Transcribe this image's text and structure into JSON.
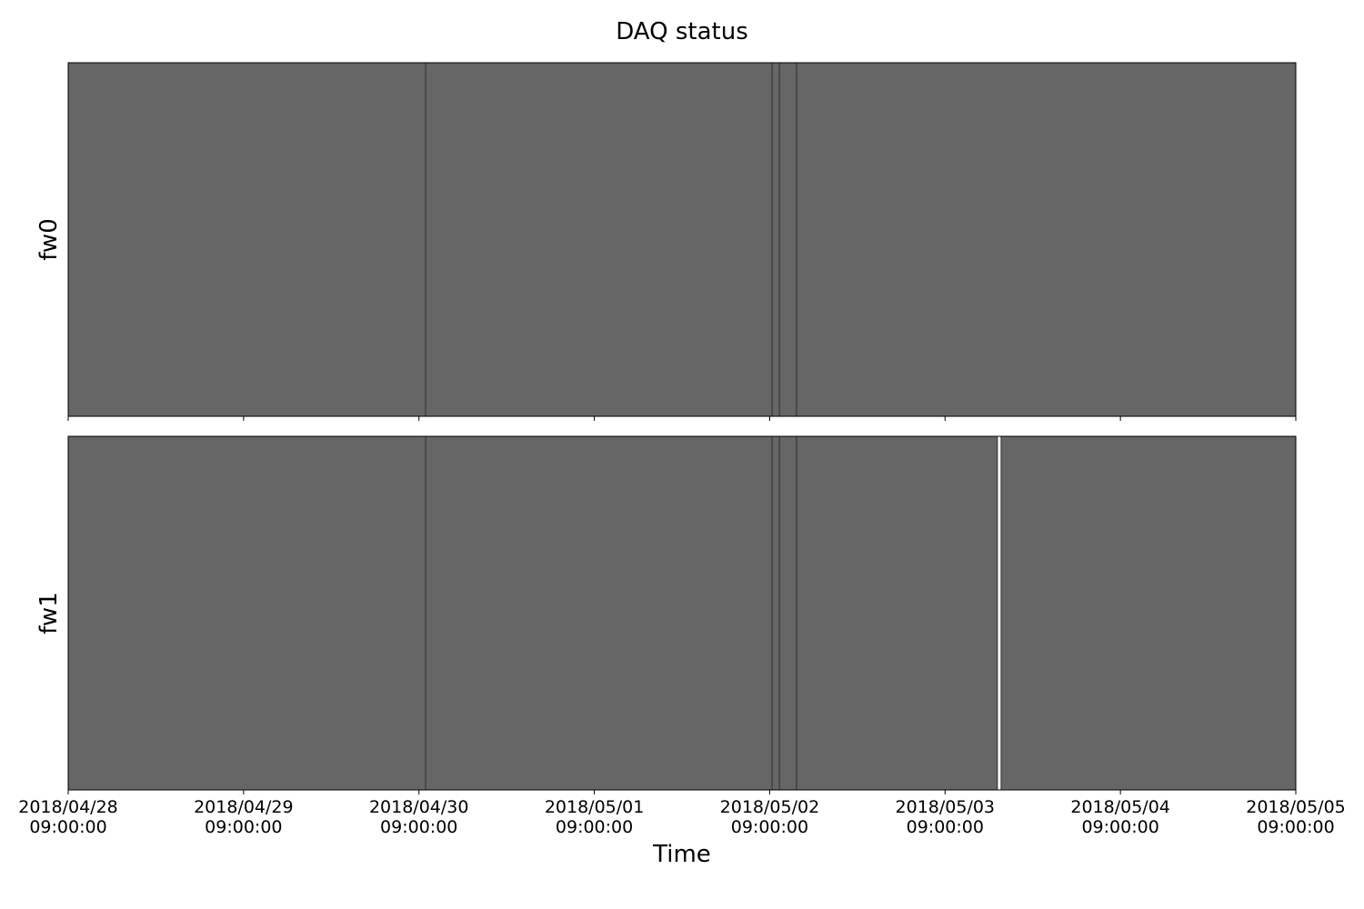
{
  "chart_data": {
    "type": "timeline",
    "title": "DAQ status",
    "xlabel": "Time",
    "xlim": [
      "2018-04-28T09:00:00",
      "2018-05-05T09:00:00"
    ],
    "x_ticks": [
      {
        "value": "2018-04-28T09:00:00",
        "date": "2018/04/28",
        "time": "09:00:00"
      },
      {
        "value": "2018-04-29T09:00:00",
        "date": "2018/04/29",
        "time": "09:00:00"
      },
      {
        "value": "2018-04-30T09:00:00",
        "date": "2018/04/30",
        "time": "09:00:00"
      },
      {
        "value": "2018-05-01T09:00:00",
        "date": "2018/05/01",
        "time": "09:00:00"
      },
      {
        "value": "2018-05-02T09:00:00",
        "date": "2018/05/02",
        "time": "09:00:00"
      },
      {
        "value": "2018-05-03T09:00:00",
        "date": "2018/05/03",
        "time": "09:00:00"
      },
      {
        "value": "2018-05-04T09:00:00",
        "date": "2018/05/04",
        "time": "09:00:00"
      },
      {
        "value": "2018-05-05T09:00:00",
        "date": "2018/05/05",
        "time": "09:00:00"
      }
    ],
    "fill_color": "#666666",
    "edge_color": "#333333",
    "panels": [
      {
        "ylabel": "fw0",
        "segments": [
          {
            "start": "2018-04-28T09:00:00",
            "end": "2018-04-30T09:55:00"
          },
          {
            "start": "2018-04-30T09:55:00",
            "end": "2018-05-02T09:20:00"
          },
          {
            "start": "2018-05-02T09:20:00",
            "end": "2018-05-02T10:20:00"
          },
          {
            "start": "2018-05-02T10:20:00",
            "end": "2018-05-02T12:40:00"
          },
          {
            "start": "2018-05-02T12:40:00",
            "end": "2018-05-05T09:00:00"
          }
        ]
      },
      {
        "ylabel": "fw1",
        "segments": [
          {
            "start": "2018-04-28T09:00:00",
            "end": "2018-04-30T09:55:00"
          },
          {
            "start": "2018-04-30T09:55:00",
            "end": "2018-05-02T09:20:00"
          },
          {
            "start": "2018-05-02T09:20:00",
            "end": "2018-05-02T10:20:00"
          },
          {
            "start": "2018-05-02T10:20:00",
            "end": "2018-05-02T12:40:00"
          },
          {
            "start": "2018-05-02T12:40:00",
            "end": "2018-05-03T16:10:00"
          },
          {
            "start": "2018-05-03T16:40:00",
            "end": "2018-05-05T09:00:00"
          }
        ]
      }
    ]
  }
}
